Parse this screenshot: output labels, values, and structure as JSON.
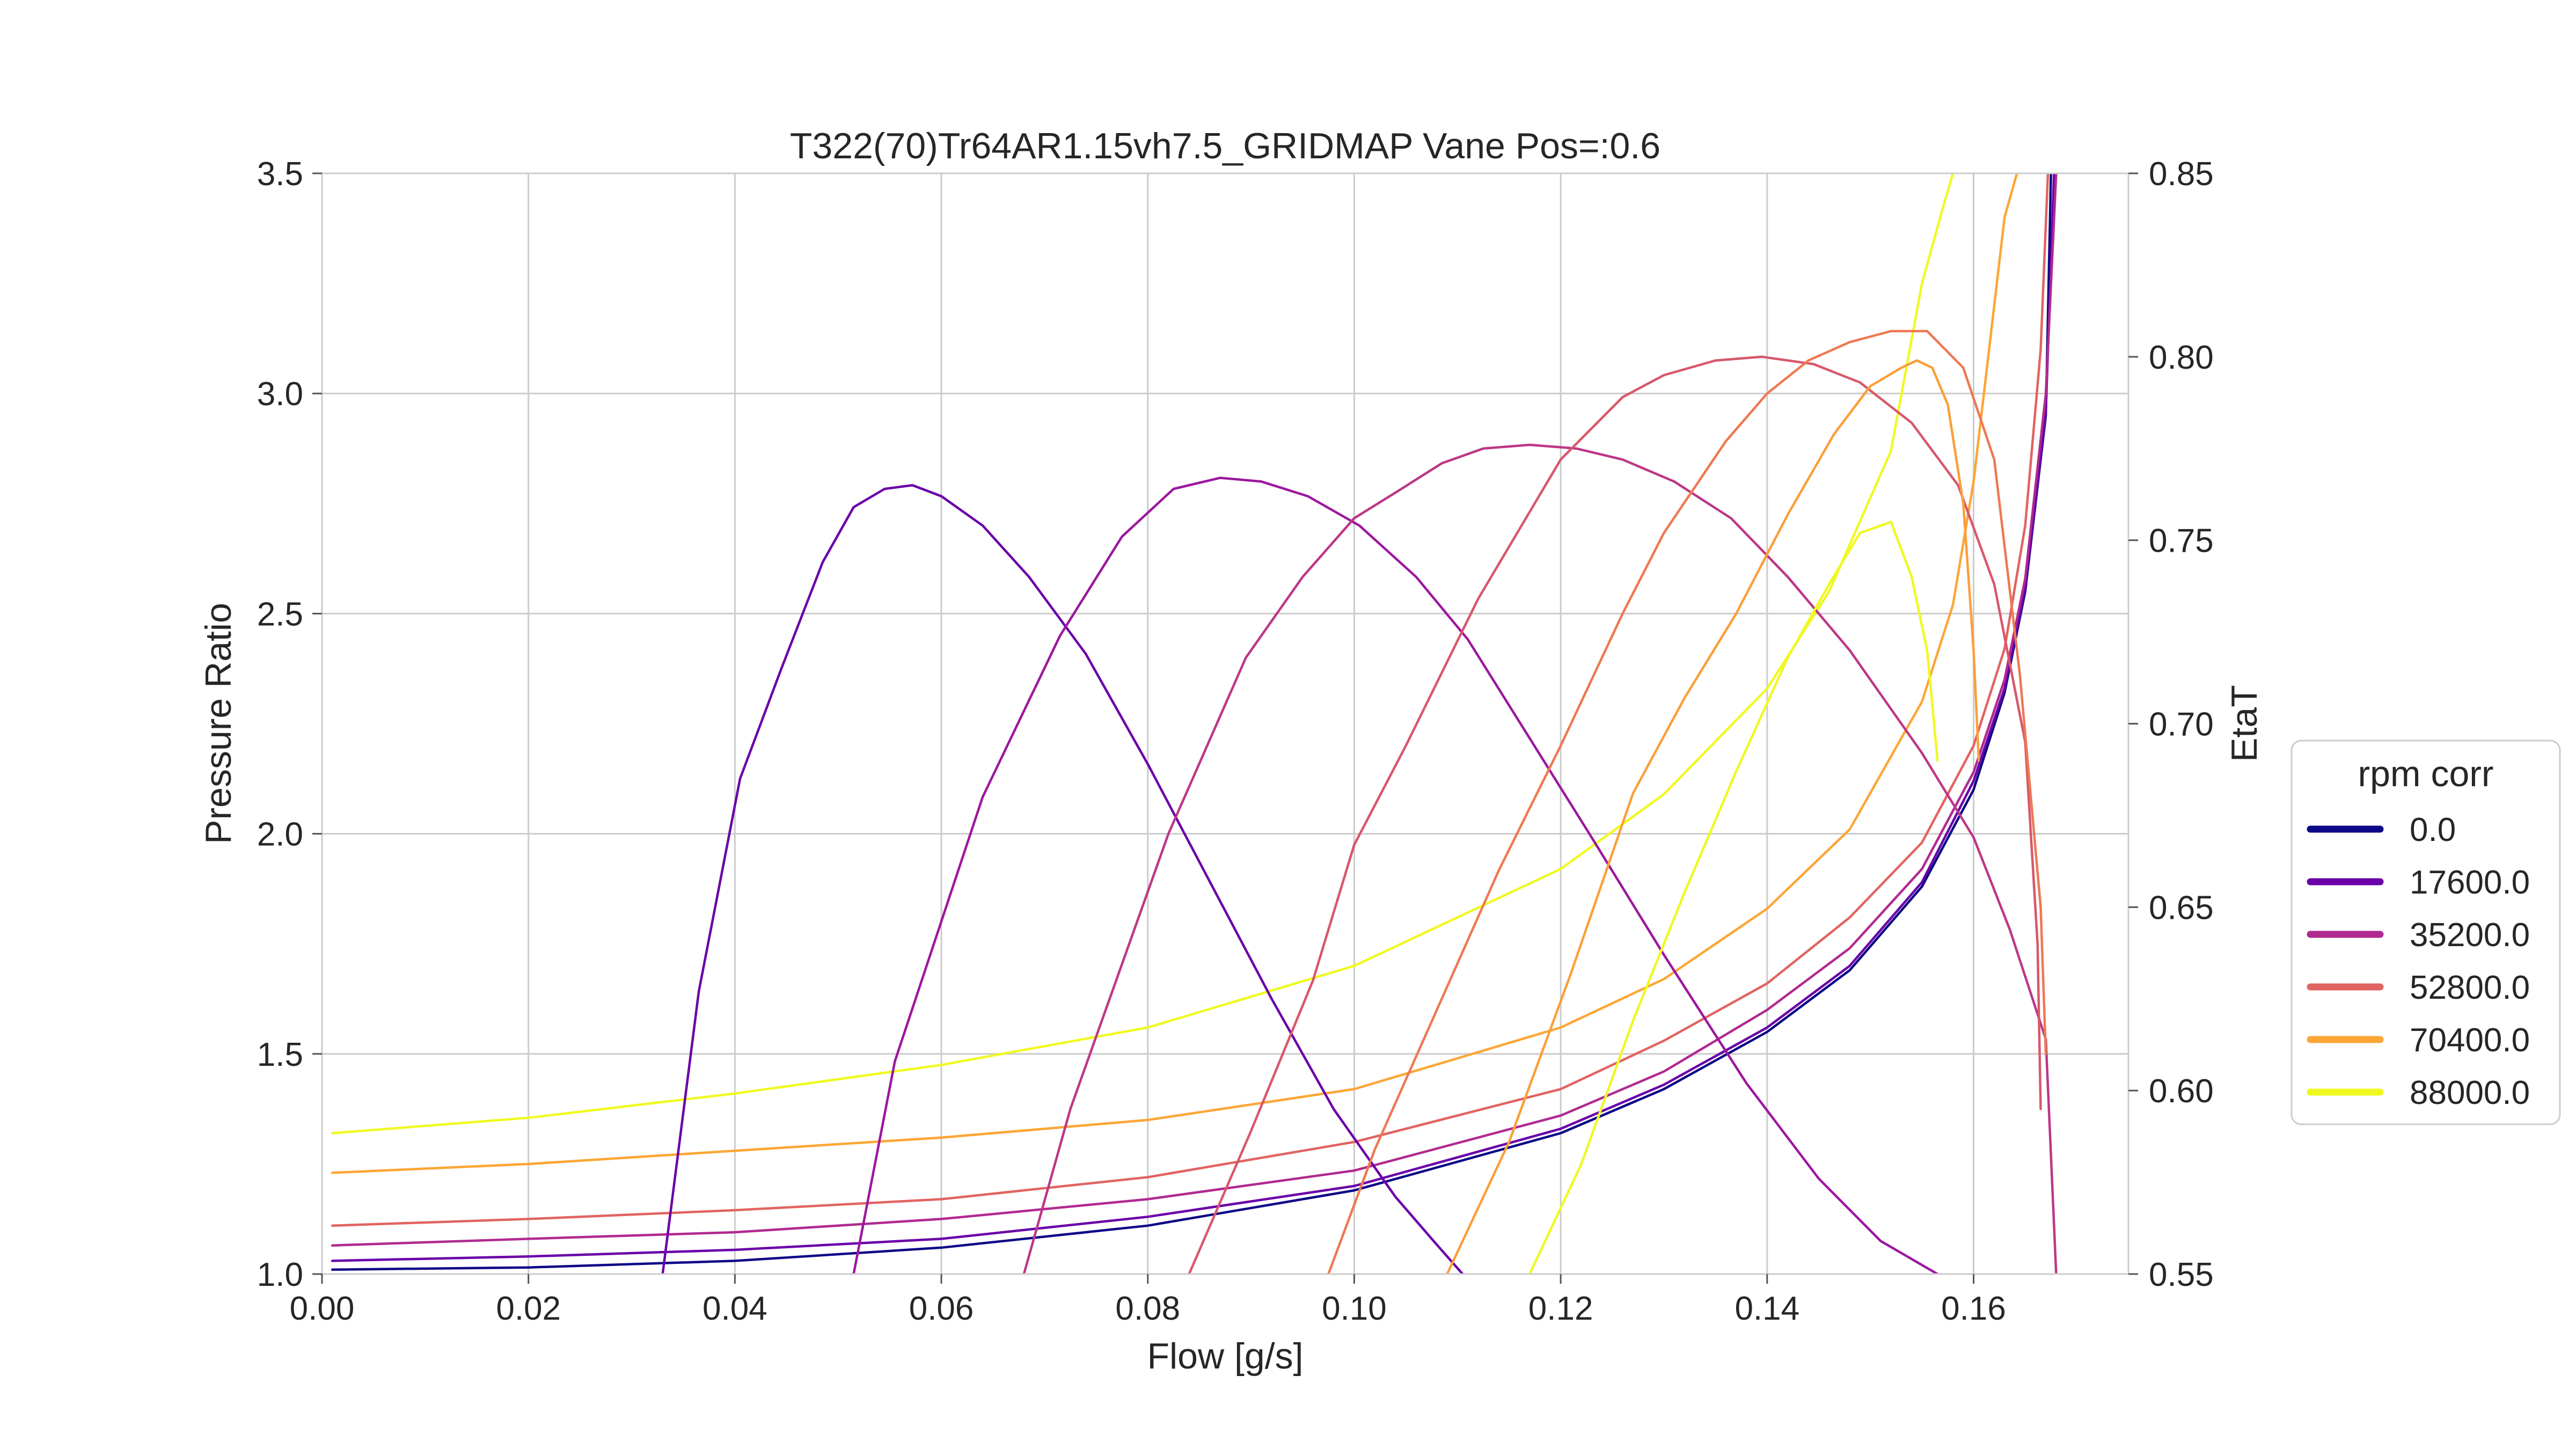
{
  "chart_data": {
    "type": "line",
    "title": "T322(70)Tr64AR1.15vh7.5_GRIDMAP Vane Pos=:0.6",
    "xlabel": "Flow [g/s]",
    "ylabel": "Pressure Ratio",
    "y2label": "EtaT",
    "xlim": [
      0.0,
      0.175
    ],
    "ylim": [
      1.0,
      3.5
    ],
    "y2lim": [
      0.55,
      0.85
    ],
    "xticks": [
      "0.00",
      "0.02",
      "0.04",
      "0.06",
      "0.08",
      "0.10",
      "0.12",
      "0.14",
      "0.16"
    ],
    "yticks": [
      "1.0",
      "1.5",
      "2.0",
      "2.5",
      "3.0",
      "3.5"
    ],
    "y2ticks": [
      "0.55",
      "0.60",
      "0.65",
      "0.70",
      "0.75",
      "0.80",
      "0.85"
    ],
    "grid": true,
    "legend": {
      "title": "rpm corr",
      "placement": "outside-right",
      "entries": [
        "0.0",
        "17600.0",
        "35200.0",
        "52800.0",
        "70400.0",
        "88000.0"
      ]
    },
    "series": [
      {
        "name": "0.0",
        "color": "#0d0887",
        "axis": "left",
        "x": [
          0.001,
          0.02,
          0.04,
          0.06,
          0.08,
          0.1,
          0.12,
          0.13,
          0.14,
          0.148,
          0.155,
          0.16,
          0.163,
          0.165,
          0.167,
          0.1675
        ],
        "y": [
          1.01,
          1.015,
          1.03,
          1.06,
          1.11,
          1.19,
          1.32,
          1.42,
          1.55,
          1.69,
          1.88,
          2.1,
          2.32,
          2.55,
          2.95,
          3.5
        ]
      },
      {
        "name": "17600.0",
        "color": "#6a00a8",
        "axis": "left",
        "x": [
          0.001,
          0.02,
          0.04,
          0.06,
          0.08,
          0.1,
          0.12,
          0.13,
          0.14,
          0.148,
          0.155,
          0.16,
          0.163,
          0.165,
          0.167,
          0.1678
        ],
        "y": [
          1.03,
          1.04,
          1.055,
          1.08,
          1.13,
          1.2,
          1.33,
          1.43,
          1.56,
          1.7,
          1.89,
          2.12,
          2.33,
          2.56,
          2.96,
          3.5
        ]
      },
      {
        "name": "35200.0",
        "color": "#b12a90",
        "axis": "left",
        "x": [
          0.001,
          0.02,
          0.04,
          0.06,
          0.08,
          0.1,
          0.12,
          0.13,
          0.14,
          0.148,
          0.155,
          0.16,
          0.163,
          0.165,
          0.167,
          0.168
        ],
        "y": [
          1.065,
          1.08,
          1.095,
          1.125,
          1.17,
          1.235,
          1.36,
          1.46,
          1.6,
          1.74,
          1.92,
          2.14,
          2.35,
          2.58,
          3.0,
          3.5
        ]
      },
      {
        "name": "52800.0",
        "color": "#e16462",
        "axis": "left",
        "x": [
          0.001,
          0.02,
          0.04,
          0.06,
          0.08,
          0.1,
          0.12,
          0.13,
          0.14,
          0.148,
          0.155,
          0.16,
          0.163,
          0.165,
          0.1665,
          0.1672
        ],
        "y": [
          1.11,
          1.125,
          1.145,
          1.17,
          1.22,
          1.3,
          1.42,
          1.53,
          1.66,
          1.81,
          1.98,
          2.2,
          2.42,
          2.7,
          3.1,
          3.5
        ]
      },
      {
        "name": "70400.0",
        "color": "#fca636",
        "axis": "left",
        "x": [
          0.001,
          0.02,
          0.04,
          0.06,
          0.08,
          0.1,
          0.12,
          0.13,
          0.14,
          0.148,
          0.155,
          0.158,
          0.16,
          0.162,
          0.163,
          0.1642
        ],
        "y": [
          1.23,
          1.25,
          1.28,
          1.31,
          1.35,
          1.42,
          1.56,
          1.67,
          1.83,
          2.01,
          2.3,
          2.52,
          2.8,
          3.2,
          3.4,
          3.5
        ]
      },
      {
        "name": "88000.0",
        "color": "#f0f921",
        "axis": "left",
        "x": [
          0.001,
          0.02,
          0.04,
          0.06,
          0.08,
          0.1,
          0.12,
          0.13,
          0.14,
          0.146,
          0.152,
          0.155,
          0.157,
          0.158
        ],
        "y": [
          1.32,
          1.355,
          1.41,
          1.475,
          1.56,
          1.7,
          1.92,
          2.09,
          2.33,
          2.55,
          2.87,
          3.25,
          3.42,
          3.5
        ]
      },
      {
        "name": "",
        "color": "#6a00a8",
        "axis": "right",
        "x": [
          0.033,
          0.0365,
          0.0405,
          0.0445,
          0.0485,
          0.0515,
          0.0545,
          0.0572,
          0.06,
          0.064,
          0.0685,
          0.074,
          0.08,
          0.086,
          0.092,
          0.098,
          0.104,
          0.108,
          0.1105
        ],
        "y": [
          0.55,
          0.627,
          0.685,
          0.715,
          0.744,
          0.759,
          0.764,
          0.765,
          0.762,
          0.754,
          0.74,
          0.719,
          0.689,
          0.657,
          0.625,
          0.595,
          0.571,
          0.558,
          0.55
        ]
      },
      {
        "name": "",
        "color": "#9c179e",
        "axis": "right",
        "x": [
          0.0515,
          0.0555,
          0.064,
          0.0715,
          0.0775,
          0.0825,
          0.087,
          0.091,
          0.0955,
          0.1005,
          0.106,
          0.111,
          0.117,
          0.123,
          0.13,
          0.138,
          0.145,
          0.151,
          0.1565,
          0.1585
        ],
        "y": [
          0.55,
          0.608,
          0.68,
          0.724,
          0.751,
          0.764,
          0.767,
          0.766,
          0.762,
          0.754,
          0.74,
          0.723,
          0.696,
          0.669,
          0.637,
          0.602,
          0.576,
          0.559,
          0.55,
          0.548
        ]
      },
      {
        "name": "",
        "color": "#bd3786",
        "axis": "right",
        "x": [
          0.068,
          0.0725,
          0.082,
          0.0895,
          0.095,
          0.1,
          0.104,
          0.1085,
          0.1125,
          0.117,
          0.1215,
          0.126,
          0.131,
          0.1365,
          0.142,
          0.148,
          0.155,
          0.16,
          0.1635,
          0.167,
          0.168
        ],
        "y": [
          0.55,
          0.595,
          0.67,
          0.718,
          0.74,
          0.756,
          0.763,
          0.771,
          0.775,
          0.776,
          0.775,
          0.772,
          0.766,
          0.756,
          0.74,
          0.72,
          0.692,
          0.669,
          0.644,
          0.614,
          0.55
        ]
      },
      {
        "name": "",
        "color": "#d8576b",
        "axis": "right",
        "x": [
          0.084,
          0.09,
          0.096,
          0.1,
          0.105,
          0.112,
          0.12,
          0.126,
          0.13,
          0.135,
          0.1395,
          0.1445,
          0.149,
          0.154,
          0.1585,
          0.162,
          0.165,
          0.1662,
          0.1665
        ],
        "y": [
          0.55,
          0.589,
          0.63,
          0.667,
          0.694,
          0.734,
          0.772,
          0.789,
          0.795,
          0.799,
          0.8,
          0.798,
          0.793,
          0.782,
          0.765,
          0.738,
          0.695,
          0.64,
          0.595
        ]
      },
      {
        "name": "",
        "color": "#ed7953",
        "axis": "right",
        "x": [
          0.0975,
          0.102,
          0.108,
          0.114,
          0.12,
          0.126,
          0.13,
          0.136,
          0.14,
          0.144,
          0.148,
          0.152,
          0.1555,
          0.159,
          0.162,
          0.1645,
          0.1665,
          0.167
        ],
        "y": [
          0.55,
          0.584,
          0.622,
          0.66,
          0.694,
          0.73,
          0.752,
          0.777,
          0.79,
          0.799,
          0.804,
          0.807,
          0.807,
          0.797,
          0.772,
          0.713,
          0.65,
          0.61
        ]
      },
      {
        "name": "",
        "color": "#fb9f3a",
        "axis": "right",
        "x": [
          0.109,
          0.115,
          0.121,
          0.127,
          0.132,
          0.137,
          0.142,
          0.1465,
          0.15,
          0.153,
          0.1545,
          0.156,
          0.1575,
          0.159,
          0.16,
          0.1605
        ],
        "y": [
          0.55,
          0.586,
          0.632,
          0.681,
          0.707,
          0.73,
          0.757,
          0.779,
          0.792,
          0.797,
          0.799,
          0.797,
          0.787,
          0.76,
          0.72,
          0.69
        ]
      },
      {
        "name": "",
        "color": "#f0f921",
        "axis": "right",
        "x": [
          0.117,
          0.122,
          0.127,
          0.132,
          0.137,
          0.142,
          0.146,
          0.149,
          0.152,
          0.154,
          0.1555,
          0.1565
        ],
        "y": [
          0.55,
          0.58,
          0.619,
          0.654,
          0.687,
          0.718,
          0.738,
          0.752,
          0.755,
          0.74,
          0.72,
          0.69
        ]
      }
    ]
  }
}
